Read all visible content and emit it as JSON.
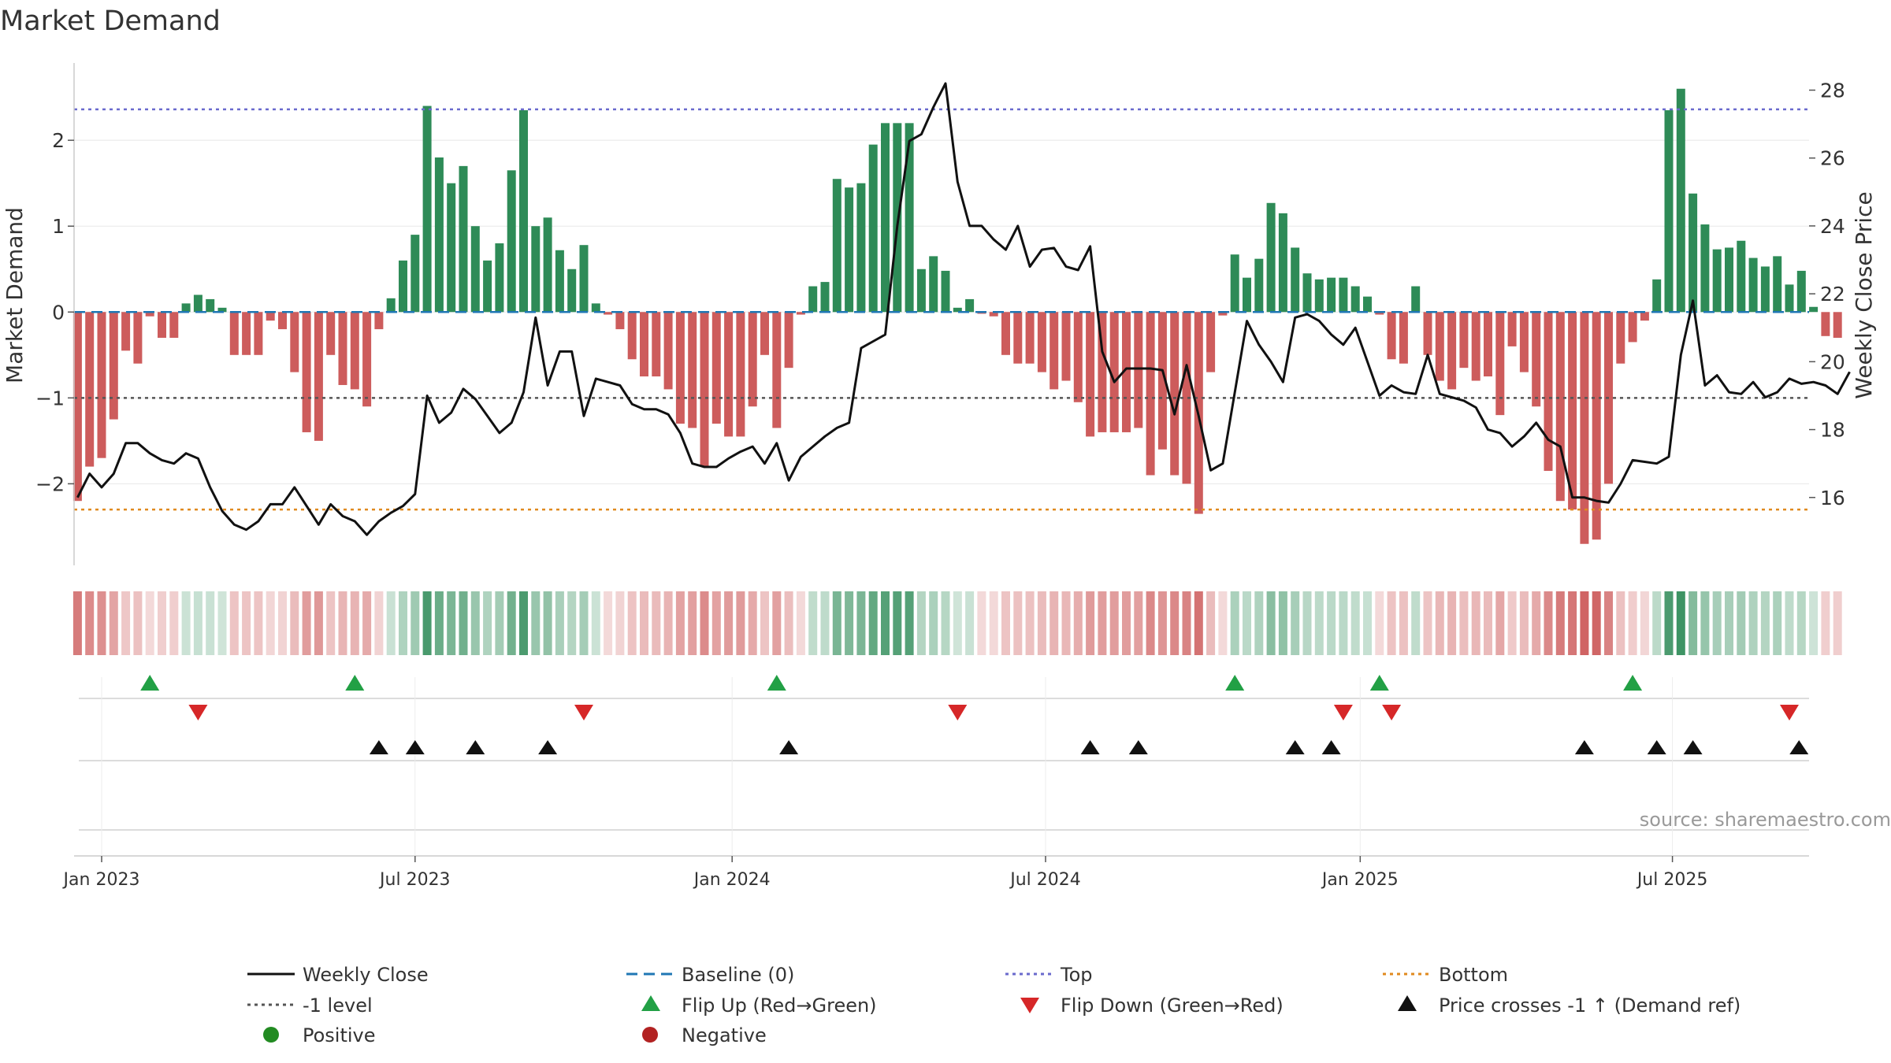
{
  "chart_data": {
    "type": "bar",
    "title": "Market Demand",
    "ylabel": "Market Demand",
    "y2label": "Weekly Close Price",
    "source": "source: sharemaestro.com",
    "ylim": [
      -2.95,
      2.9
    ],
    "y2lim": [
      14.0,
      28.8
    ],
    "yticks": [
      -2,
      -1,
      0,
      1,
      2
    ],
    "yticklabels": [
      "−2",
      "−1",
      "0",
      "1",
      "2"
    ],
    "y2ticks": [
      16,
      18,
      20,
      22,
      24,
      26,
      28
    ],
    "y2ticklabels": [
      "16",
      "18",
      "20",
      "22",
      "24",
      "26",
      "28"
    ],
    "xticks": [
      {
        "label": "Jan 2023",
        "week": 0
      },
      {
        "label": "Jul 2023",
        "week": 26
      },
      {
        "label": "Jan 2024",
        "week": 52.3
      },
      {
        "label": "Jul 2024",
        "week": 78.3
      },
      {
        "label": "Jan 2025",
        "week": 104.4
      },
      {
        "label": "Jul 2025",
        "week": 130.3
      }
    ],
    "reference_lines": {
      "top": 2.36,
      "bottom": -2.3,
      "minus_one": -1,
      "baseline": 0
    },
    "colors": {
      "positive_bar": "#2e8b57",
      "negative_bar": "#cd5c5c",
      "close_line": "#111111",
      "baseline": "#1f77b4",
      "top": "#6a6acd",
      "bottom": "#e08a1e",
      "minus_one": "#555555",
      "flip_up": "#22a045",
      "flip_down": "#d62728",
      "cross": "#111111",
      "positive_marker": "#228b22",
      "negative_marker": "#b22222"
    },
    "x_weeks": {
      "start": -2,
      "count": 146
    },
    "demand": [
      -2.2,
      -1.8,
      -1.7,
      -1.25,
      -0.45,
      -0.6,
      -0.05,
      -0.3,
      -0.3,
      0.1,
      0.2,
      0.15,
      0.05,
      -0.5,
      -0.5,
      -0.5,
      -0.1,
      -0.2,
      -0.7,
      -1.4,
      -1.5,
      -0.5,
      -0.85,
      -0.9,
      -1.1,
      -0.2,
      0.16,
      0.6,
      0.9,
      2.4,
      1.8,
      1.5,
      1.7,
      1.0,
      0.6,
      0.8,
      1.65,
      2.35,
      1.0,
      1.1,
      0.72,
      0.5,
      0.78,
      0.1,
      -0.03,
      -0.2,
      -0.55,
      -0.75,
      -0.75,
      -0.9,
      -1.3,
      -1.35,
      -1.8,
      -1.3,
      -1.45,
      -1.45,
      -1.1,
      -0.5,
      -1.35,
      -0.65,
      -0.03,
      0.3,
      0.35,
      1.55,
      1.45,
      1.5,
      1.95,
      2.2,
      2.2,
      2.2,
      0.5,
      0.65,
      0.48,
      0.05,
      0.15,
      -0.02,
      -0.05,
      -0.5,
      -0.6,
      -0.6,
      -0.7,
      -0.9,
      -0.8,
      -1.05,
      -1.45,
      -1.4,
      -1.4,
      -1.4,
      -1.35,
      -1.9,
      -1.6,
      -1.9,
      -2.0,
      -2.35,
      -0.7,
      -0.04,
      0.67,
      0.4,
      0.62,
      1.27,
      1.15,
      0.75,
      0.45,
      0.38,
      0.4,
      0.4,
      0.3,
      0.18,
      -0.03,
      -0.55,
      -0.6,
      0.3,
      -0.5,
      -0.8,
      -0.9,
      -0.65,
      -0.8,
      -0.75,
      -1.2,
      -0.4,
      -0.7,
      -1.1,
      -1.85,
      -2.2,
      -2.3,
      -2.7,
      -2.65,
      -2.0,
      -0.6,
      -0.35,
      -0.1,
      0.38,
      2.35,
      2.6,
      1.38,
      1.02,
      0.73,
      0.75,
      0.83,
      0.63,
      0.53,
      0.65,
      0.32,
      0.48,
      0.06,
      -0.28,
      -0.3
    ],
    "close": [
      16.0,
      16.7,
      16.3,
      16.7,
      17.6,
      17.6,
      17.3,
      17.1,
      17.0,
      17.3,
      17.15,
      16.3,
      15.6,
      15.2,
      15.05,
      15.3,
      15.8,
      15.8,
      16.3,
      15.75,
      15.2,
      15.8,
      15.45,
      15.3,
      14.9,
      15.3,
      15.55,
      15.75,
      16.1,
      19.0,
      18.2,
      18.5,
      19.2,
      18.9,
      18.4,
      17.9,
      18.2,
      19.1,
      21.3,
      19.3,
      20.3,
      20.3,
      18.4,
      19.5,
      19.4,
      19.3,
      18.75,
      18.6,
      18.6,
      18.45,
      17.9,
      17.0,
      16.9,
      16.9,
      17.15,
      17.35,
      17.5,
      17.0,
      17.6,
      16.5,
      17.2,
      17.5,
      17.8,
      18.05,
      18.2,
      20.4,
      20.6,
      20.8,
      24.0,
      26.5,
      26.7,
      27.5,
      28.2,
      25.3,
      24.0,
      24.0,
      23.6,
      23.3,
      24.0,
      22.8,
      23.3,
      23.35,
      22.8,
      22.7,
      23.4,
      20.3,
      19.4,
      19.8,
      19.8,
      19.8,
      19.75,
      18.45,
      19.9,
      18.4,
      16.8,
      17.0,
      19.1,
      21.2,
      20.5,
      20.0,
      19.4,
      21.3,
      21.4,
      21.2,
      20.8,
      20.5,
      21.0,
      20.0,
      19.0,
      19.3,
      19.1,
      19.05,
      20.2,
      19.05,
      18.95,
      18.85,
      18.65,
      18.0,
      17.9,
      17.5,
      17.8,
      18.2,
      17.7,
      17.5,
      16.0,
      16.0,
      15.9,
      15.85,
      16.4,
      17.1,
      17.05,
      17.0,
      17.2,
      20.2,
      21.8,
      19.3,
      19.6,
      19.1,
      19.05,
      19.4,
      18.95,
      19.1,
      19.5,
      19.35,
      19.4,
      19.3,
      19.05,
      19.7
    ],
    "flip_up_weeks": [
      4,
      21,
      56,
      94,
      106,
      127
    ],
    "flip_down_weeks": [
      8,
      40,
      71,
      103,
      107,
      140
    ],
    "cross_weeks": [
      23,
      26,
      31,
      37,
      57,
      82,
      86,
      99,
      102,
      123,
      129,
      132,
      140.8
    ],
    "legend": {
      "weekly_close": "Weekly Close",
      "baseline": "Baseline (0)",
      "top": "Top",
      "bottom": "Bottom",
      "minus_one": "-1 level",
      "flip_up": "Flip Up (Red→Green)",
      "flip_down": "Flip Down (Green→Red)",
      "cross": "Price crosses -1 ↑ (Demand ref)",
      "positive": "Positive",
      "negative": "Negative"
    }
  }
}
